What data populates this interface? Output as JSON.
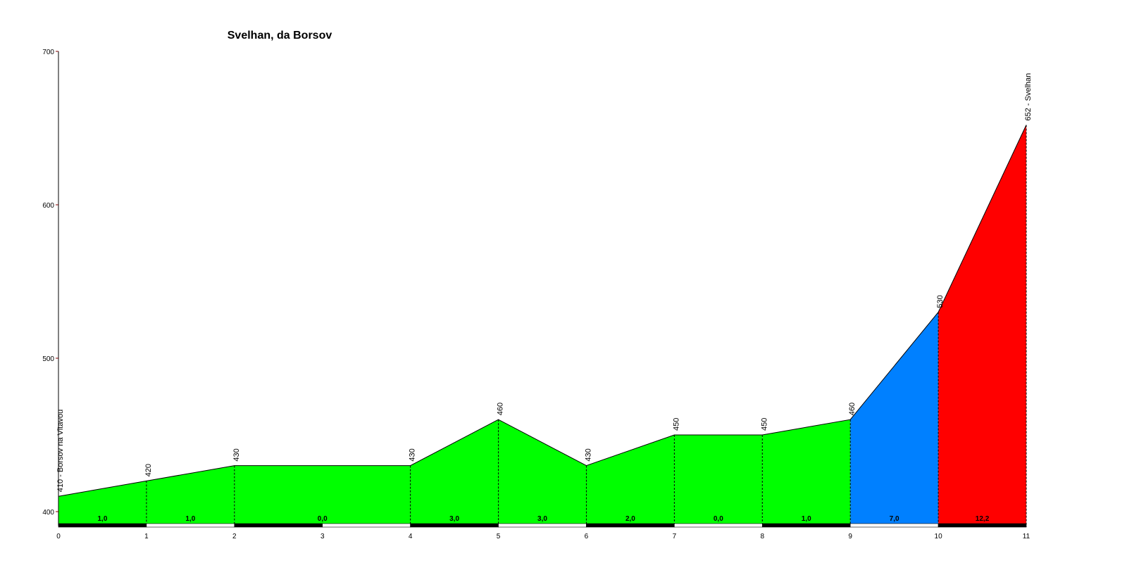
{
  "chart_data": {
    "type": "area",
    "title": "Svelhan, da Borsov",
    "xlabel": "",
    "ylabel": "",
    "xlim": [
      0,
      11
    ],
    "ylim": [
      390,
      700
    ],
    "x_ticks": [
      "0",
      "1",
      "2",
      "3",
      "4",
      "5",
      "6",
      "7",
      "8",
      "9",
      "10",
      "11"
    ],
    "y_ticks": [
      "400",
      "500",
      "600",
      "700"
    ],
    "points": [
      {
        "x": 0,
        "y": 410,
        "label": "410 - Borsov na Vltavou"
      },
      {
        "x": 1,
        "y": 420,
        "label": "420"
      },
      {
        "x": 2,
        "y": 430,
        "label": "430"
      },
      {
        "x": 4,
        "y": 430,
        "label": "430"
      },
      {
        "x": 5,
        "y": 460,
        "label": "460"
      },
      {
        "x": 6,
        "y": 430,
        "label": "430"
      },
      {
        "x": 7,
        "y": 450,
        "label": "450"
      },
      {
        "x": 8,
        "y": 450,
        "label": "450"
      },
      {
        "x": 9,
        "y": 460,
        "label": "460"
      },
      {
        "x": 10,
        "y": 530,
        "label": "530"
      },
      {
        "x": 11,
        "y": 652,
        "label": "652 - Svelhan"
      }
    ],
    "segments": [
      {
        "from": 0,
        "to": 1,
        "grade": "1,0",
        "color": "#00ff00"
      },
      {
        "from": 1,
        "to": 2,
        "grade": "1,0",
        "color": "#00ff00"
      },
      {
        "from": 2,
        "to": 4,
        "grade": "0,0",
        "color": "#00ff00"
      },
      {
        "from": 4,
        "to": 5,
        "grade": "3,0",
        "color": "#00ff00"
      },
      {
        "from": 5,
        "to": 6,
        "grade": "3,0",
        "color": "#00ff00"
      },
      {
        "from": 6,
        "to": 7,
        "grade": "2,0",
        "color": "#00ff00"
      },
      {
        "from": 7,
        "to": 8,
        "grade": "0,0",
        "color": "#00ff00"
      },
      {
        "from": 8,
        "to": 9,
        "grade": "1,0",
        "color": "#00ff00"
      },
      {
        "from": 9,
        "to": 10,
        "grade": "7,0",
        "color": "#0080ff"
      },
      {
        "from": 10,
        "to": 11,
        "grade": "12,2",
        "color": "#ff0000"
      }
    ],
    "colors": {
      "axis": "#000000",
      "axis_tick": "#800000",
      "outline": "#000000",
      "bar_dark": "#000000",
      "bar_light": "#ffffff"
    },
    "grid": false,
    "legend": "none"
  }
}
